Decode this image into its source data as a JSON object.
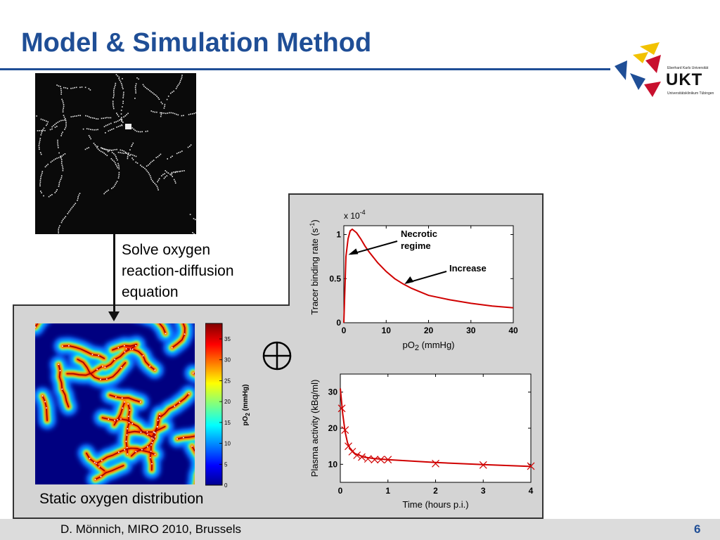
{
  "slide": {
    "title": "Model & Simulation Method",
    "solve_lines": [
      "Solve oxygen",
      "reaction-diffusion",
      "equation"
    ],
    "static_label": "Static oxygen distribution",
    "combine_symbol": "⊕",
    "footer": "D. Mönnich, MIRO 2010, Brussels",
    "page_number": "6",
    "accent_color": "#1f4e96"
  },
  "logo": {
    "line1": "Eberhard Karls Universität",
    "acronym": "UKT",
    "line2": "Universitätsklinikum Tübingen"
  },
  "colorbar": {
    "label": "pO2 (mmHg)",
    "ticks": [
      "35",
      "30",
      "25",
      "20",
      "15",
      "10",
      "5",
      "0"
    ]
  },
  "chart_data": [
    {
      "type": "line",
      "ylabel": "Tracer binding rate (s-1)",
      "xlabel": "pO2 (mmHg)",
      "y_multiplier": "x 10-4",
      "xlim": [
        0,
        40
      ],
      "ylim": [
        0,
        1.1
      ],
      "xticks": [
        0,
        10,
        20,
        30,
        40
      ],
      "yticks": [
        0,
        0.5,
        1
      ],
      "series": [
        {
          "x": [
            0,
            0.5,
            1,
            1.5,
            2,
            3,
            4,
            5,
            6,
            8,
            10,
            12,
            14,
            16,
            18,
            20,
            25,
            30,
            35,
            40
          ],
          "y": [
            0,
            0.75,
            0.95,
            1.04,
            1.06,
            1.02,
            0.95,
            0.87,
            0.8,
            0.68,
            0.58,
            0.5,
            0.44,
            0.39,
            0.35,
            0.31,
            0.26,
            0.22,
            0.19,
            0.17
          ]
        }
      ],
      "annotations": [
        {
          "text": "Necrotic regime",
          "x": 0.4,
          "y": 0.77
        },
        {
          "text": "Increase",
          "x": 14,
          "y": 0.43
        }
      ],
      "line_color": "#d00000"
    },
    {
      "type": "line",
      "ylabel": "Plasma activity (kBq/ml)",
      "xlabel": "Time (hours p.i.)",
      "xlim": [
        0,
        4
      ],
      "ylim": [
        5,
        35
      ],
      "xticks": [
        0,
        1,
        2,
        3,
        4
      ],
      "yticks": [
        10,
        20,
        30
      ],
      "series": [
        {
          "x": [
            0,
            0.05,
            0.1,
            0.15,
            0.2,
            0.3,
            0.4,
            0.5,
            0.7,
            1,
            1.5,
            2,
            3,
            4
          ],
          "y": [
            31,
            24,
            19,
            16,
            14.5,
            13,
            12.5,
            12,
            11.6,
            11.3,
            10.9,
            10.5,
            9.9,
            9.4
          ]
        }
      ],
      "markers": {
        "x": [
          0.03,
          0.1,
          0.17,
          0.25,
          0.35,
          0.45,
          0.58,
          0.72,
          0.85,
          1.0,
          2.0,
          3.0,
          4.0
        ],
        "y": [
          25.5,
          19.5,
          15,
          13.5,
          12.5,
          12,
          11.5,
          11.3,
          11.3,
          11.3,
          10.2,
          9.8,
          9.5
        ]
      },
      "line_color": "#d00000"
    }
  ]
}
